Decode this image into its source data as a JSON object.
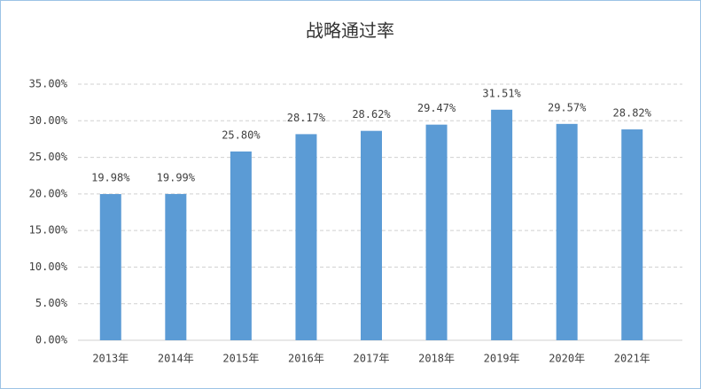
{
  "chart_data": {
    "type": "bar",
    "title": "战略通过率",
    "categories": [
      "2013年",
      "2014年",
      "2015年",
      "2016年",
      "2017年",
      "2018年",
      "2019年",
      "2020年",
      "2021年"
    ],
    "values": [
      19.98,
      19.99,
      25.8,
      28.17,
      28.62,
      29.47,
      31.51,
      29.57,
      28.82
    ],
    "value_labels": [
      "19.98%",
      "19.99%",
      "25.80%",
      "28.17%",
      "28.62%",
      "29.47%",
      "31.51%",
      "29.57%",
      "28.82%"
    ],
    "color": "#5b9bd5",
    "ylim": [
      0,
      35
    ],
    "yticks": [
      {
        "value": 0,
        "label": "0.00%"
      },
      {
        "value": 5,
        "label": "5.00%"
      },
      {
        "value": 10,
        "label": "10.00%"
      },
      {
        "value": 15,
        "label": "15.00%"
      },
      {
        "value": 20,
        "label": "20.00%"
      },
      {
        "value": 25,
        "label": "25.00%"
      },
      {
        "value": 30,
        "label": "30.00%"
      },
      {
        "value": 35,
        "label": "35.00%"
      }
    ],
    "grid": true
  }
}
